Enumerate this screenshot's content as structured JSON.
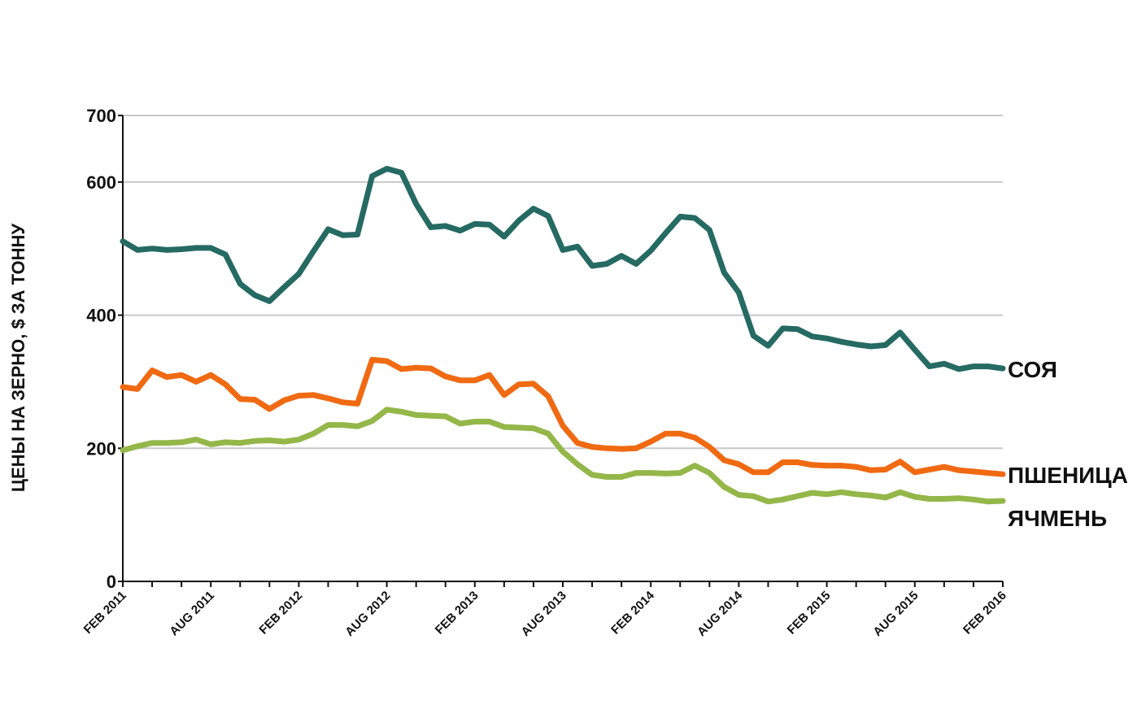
{
  "chart_data": {
    "type": "line",
    "title": "",
    "xlabel": "",
    "ylabel": "ЦЕНЫ НА ЗЕРНО, $ ЗА ТОННУ",
    "ylim": [
      0,
      700
    ],
    "yticks": [
      0,
      200,
      400,
      600,
      700
    ],
    "grid": true,
    "x_tick_labels": [
      "FEB 2011",
      "AUG 2011",
      "FEB 2012",
      "AUG 2012",
      "FEB 2013",
      "AUG 2013",
      "FEB 2014",
      "AUG 2014",
      "FEB 2015",
      "AUG 2015",
      "FEB 2016"
    ],
    "x_count": 61,
    "series": [
      {
        "name": "СОЯ",
        "color": "#256a63",
        "values": [
          511,
          498,
          500,
          498,
          499,
          501,
          501,
          491,
          447,
          430,
          421,
          442,
          462,
          496,
          529,
          520,
          521,
          609,
          620,
          614,
          567,
          532,
          534,
          527,
          537,
          536,
          518,
          542,
          560,
          549,
          498,
          503,
          474,
          477,
          489,
          477,
          497,
          523,
          548,
          546,
          528,
          464,
          434,
          369,
          354,
          380,
          379,
          368,
          365,
          360,
          356,
          353,
          355,
          374,
          348,
          323,
          327,
          319,
          323,
          323,
          320
        ]
      },
      {
        "name": "ПШЕНИЦА",
        "color": "#f06a12",
        "values": [
          292,
          289,
          317,
          307,
          310,
          300,
          310,
          296,
          274,
          273,
          259,
          272,
          279,
          280,
          275,
          269,
          267,
          333,
          331,
          319,
          321,
          320,
          308,
          302,
          302,
          310,
          280,
          296,
          297,
          278,
          234,
          208,
          202,
          200,
          199,
          200,
          210,
          222,
          222,
          216,
          202,
          182,
          176,
          164,
          164,
          179,
          179,
          175,
          174,
          174,
          172,
          167,
          168,
          180,
          164,
          168,
          172,
          167,
          165,
          163,
          161
        ]
      },
      {
        "name": "ЯЧМЕНЬ",
        "color": "#94b749",
        "values": [
          197,
          203,
          208,
          208,
          209,
          213,
          206,
          209,
          208,
          211,
          212,
          210,
          213,
          222,
          235,
          235,
          233,
          241,
          258,
          255,
          250,
          249,
          248,
          237,
          240,
          240,
          232,
          231,
          230,
          222,
          195,
          176,
          160,
          157,
          157,
          163,
          163,
          162,
          163,
          174,
          163,
          142,
          130,
          128,
          120,
          123,
          128,
          133,
          131,
          134,
          131,
          129,
          126,
          134,
          127,
          124,
          124,
          125,
          123,
          120,
          121
        ]
      }
    ]
  }
}
